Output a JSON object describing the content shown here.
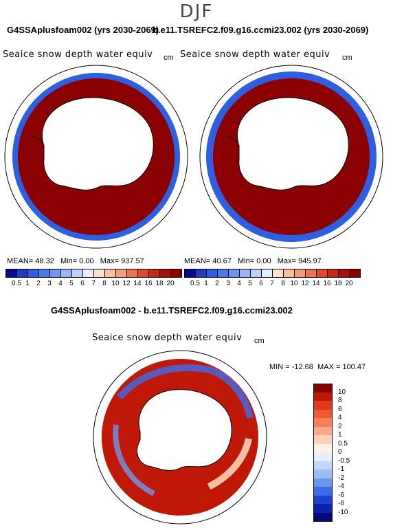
{
  "season": "DJF",
  "panels": [
    {
      "title": "G4SSAplusfoam002 (yrs 2030-2069)",
      "variable": "Seaice snow depth water equiv",
      "unit": "cm",
      "mean_label": "MEAN=",
      "mean": "48.32",
      "min_label": "Min=",
      "min": "0.00",
      "max_label": "Max=",
      "max": "937.57"
    },
    {
      "title": "b.e11.TSREFC2.f09.g16.ccmi23.002 (yrs 2030-2069)",
      "variable": "Seaice snow depth water equiv",
      "unit": "cm",
      "mean_label": "MEAN=",
      "mean": "40.67",
      "min_label": "Min=",
      "min": "0.00",
      "max_label": "Max=",
      "max": "945.97"
    }
  ],
  "abs_colorbar": {
    "labels": [
      "0.5",
      "1",
      "2",
      "3",
      "4",
      "5",
      "6",
      "7",
      "8",
      "10",
      "12",
      "14",
      "16",
      "18",
      "20"
    ],
    "colors": [
      "#0a0a8c",
      "#1e3cc8",
      "#2e5fe0",
      "#4a7ae8",
      "#6e96ee",
      "#96b6f4",
      "#bcd2fa",
      "#e4eefc",
      "#fde0cf",
      "#fcbfa0",
      "#f89c78",
      "#f07250",
      "#e04830",
      "#c82818",
      "#a81008",
      "#8a0000"
    ]
  },
  "diff": {
    "title": "G4SSAplusfoam002 - b.e11.TSREFC2.f09.g16.ccmi23.002",
    "variable": "Seaice snow depth water equiv",
    "unit": "cm",
    "min_label": "MIN =",
    "min": "-12.68",
    "max_label": "MAX =",
    "max": "100.47",
    "colorbar": {
      "labels": [
        "10",
        "8",
        "6",
        "4",
        "2",
        "1",
        "0.5",
        "0",
        "-0.5",
        "-1",
        "-2",
        "-4",
        "-6",
        "-8",
        "-10"
      ],
      "colors": [
        "#8a0000",
        "#c01808",
        "#e03818",
        "#f05a30",
        "#f88058",
        "#fca888",
        "#fdd2b8",
        "#fff0e4",
        "#e6eefc",
        "#c2d6fa",
        "#9cbcf4",
        "#6e96ee",
        "#3e6ce6",
        "#1e42d0",
        "#0c22a8",
        "#04087a"
      ]
    }
  },
  "colors": {
    "ice": "#8b0000",
    "land": "#ffffff",
    "coast": "#000000"
  }
}
